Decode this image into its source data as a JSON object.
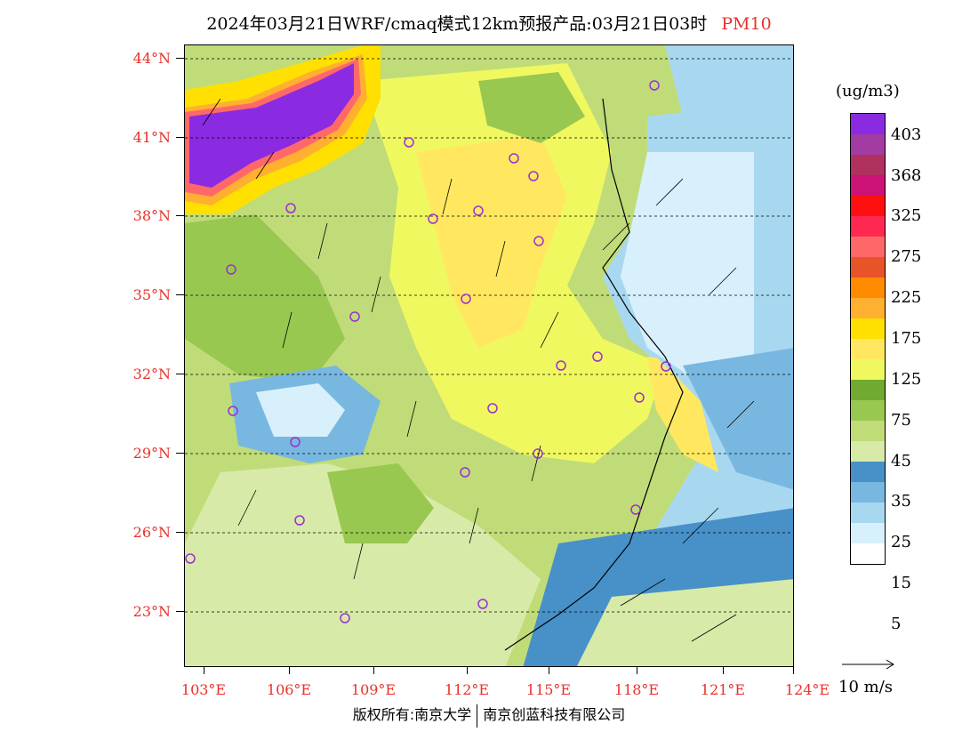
{
  "title": {
    "main": "2024年03月21日WRF/cmaq模式12km预报产品:03月21日03时",
    "pollutant": "PM10"
  },
  "axes": {
    "lat_labels": [
      "44°N",
      "41°N",
      "38°N",
      "35°N",
      "32°N",
      "29°N",
      "26°N",
      "23°N"
    ],
    "lon_labels": [
      "103°E",
      "106°E",
      "109°E",
      "112°E",
      "115°E",
      "118°E",
      "121°E",
      "124°E"
    ]
  },
  "legend": {
    "unit": "(ug/m3)",
    "levels": [
      "403",
      "368",
      "325",
      "275",
      "225",
      "175",
      "125",
      "75",
      "45",
      "35",
      "25",
      "15",
      "5"
    ],
    "colors": [
      "#8a2be2",
      "#a23ca3",
      "#b03060",
      "#cc1177",
      "#ff1010",
      "#ff2850",
      "#ff6868",
      "#e85428",
      "#ff8c00",
      "#ffb030",
      "#ffe000",
      "#ffe860",
      "#f0f860",
      "#70aa30",
      "#98c850",
      "#c0dc78",
      "#d8eaa8",
      "#4890c8",
      "#78b8e0",
      "#a8d8f0",
      "#d8f0fc",
      "#ffffff"
    ]
  },
  "wind_reference": "10 m/s",
  "footer": {
    "copyright": "版权所有:南京大学",
    "company": "南京创蓝科技有限公司"
  },
  "colors": {
    "accent_red": "#e8312a",
    "city_marker": "#9b30d0"
  }
}
